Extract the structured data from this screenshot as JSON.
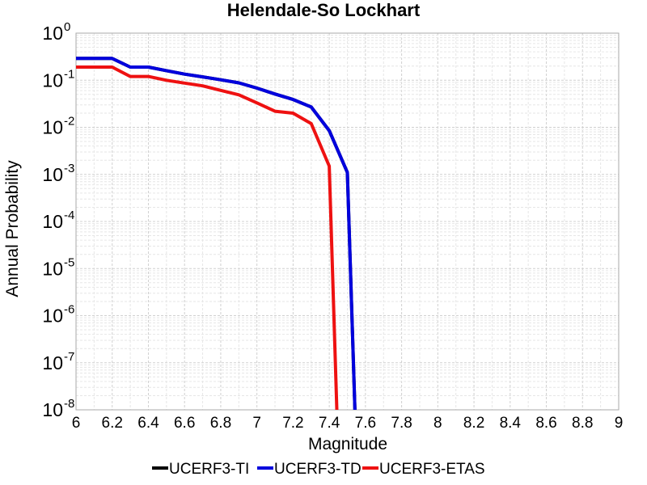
{
  "chart_data": {
    "type": "line",
    "title": "Helendale-So Lockhart",
    "xlabel": "Magnitude",
    "ylabel": "Annual Probability",
    "xlim": [
      6,
      9
    ],
    "ylim": [
      1e-08,
      1
    ],
    "yscale": "log",
    "grid": true,
    "legend_position": "bottom",
    "x_ticks": [
      "6",
      "6.2",
      "6.4",
      "6.6",
      "6.8",
      "7",
      "7.2",
      "7.4",
      "7.6",
      "7.8",
      "8",
      "8.2",
      "8.4",
      "8.6",
      "8.8",
      "9"
    ],
    "y_tick_exponents": [
      "0",
      "-1",
      "-2",
      "-3",
      "-4",
      "-5",
      "-6",
      "-7",
      "-8"
    ],
    "y_tick_base": "10",
    "series": [
      {
        "name": "UCERF3-TI",
        "color": "#000000",
        "x": [
          6.0,
          6.1,
          6.2,
          6.3,
          6.4,
          6.5,
          6.6,
          6.7,
          6.8,
          6.9,
          7.0,
          7.1,
          7.2,
          7.3,
          7.4,
          7.5,
          7.55
        ],
        "y": [
          0.29,
          0.29,
          0.29,
          0.19,
          0.19,
          0.16,
          0.135,
          0.118,
          0.102,
          0.088,
          0.068,
          0.051,
          0.039,
          0.027,
          0.0085,
          0.0011,
          1e-09
        ]
      },
      {
        "name": "UCERF3-TD",
        "color": "#0000dd",
        "x": [
          6.0,
          6.1,
          6.2,
          6.3,
          6.4,
          6.5,
          6.6,
          6.7,
          6.8,
          6.9,
          7.0,
          7.1,
          7.2,
          7.3,
          7.4,
          7.5,
          7.55
        ],
        "y": [
          0.29,
          0.29,
          0.29,
          0.19,
          0.19,
          0.16,
          0.135,
          0.118,
          0.102,
          0.088,
          0.068,
          0.051,
          0.039,
          0.027,
          0.0085,
          0.0011,
          1e-09
        ]
      },
      {
        "name": "UCERF3-ETAS",
        "color": "#ee1111",
        "x": [
          6.0,
          6.1,
          6.2,
          6.3,
          6.4,
          6.5,
          6.6,
          6.7,
          6.8,
          6.9,
          7.0,
          7.1,
          7.2,
          7.3,
          7.4,
          7.45
        ],
        "y": [
          0.19,
          0.19,
          0.19,
          0.12,
          0.12,
          0.1,
          0.087,
          0.076,
          0.061,
          0.049,
          0.033,
          0.022,
          0.02,
          0.012,
          0.0015,
          1e-09
        ]
      }
    ]
  }
}
